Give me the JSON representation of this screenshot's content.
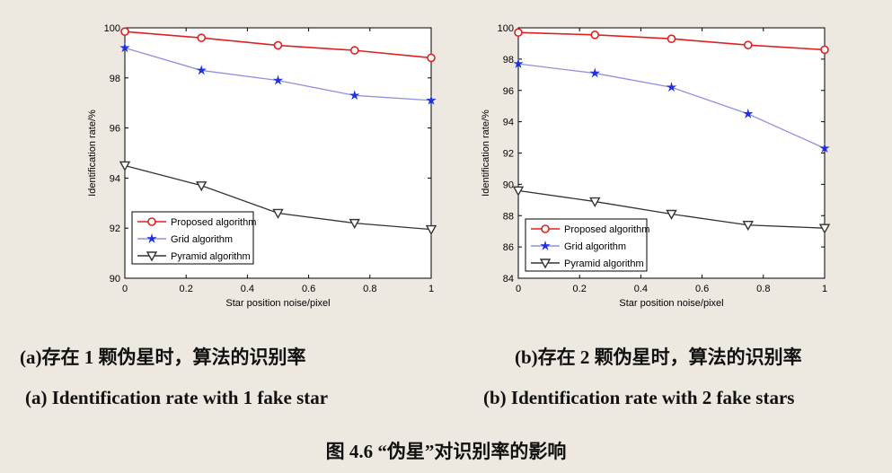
{
  "captions": {
    "a_zh": "(a)存在 1 颗伪星时，算法的识别率",
    "a_en": "(a) Identification rate with 1 fake star",
    "b_zh": "(b)存在 2 颗伪星时，算法的识别率",
    "b_en": "(b) Identification rate with 2 fake stars",
    "figure": "图 4.6 “伪星”对识别率的影响"
  },
  "colors": {
    "proposed": "#e02020",
    "grid": "#2030e0",
    "pyramid": "#333333",
    "grid_line": "#9090e0"
  },
  "chart_data": [
    {
      "type": "line",
      "xlabel": "Star position noise/pixel",
      "ylabel": "Identification rate/%",
      "xlim": [
        0,
        1
      ],
      "ylim": [
        90,
        100
      ],
      "xticks": [
        0,
        0.2,
        0.4,
        0.6,
        0.8,
        1
      ],
      "xtick_labels": [
        "0",
        "0.2",
        "0.4",
        "0.6",
        "0.8",
        "1"
      ],
      "yticks": [
        90,
        92,
        94,
        96,
        98,
        100
      ],
      "ytick_labels": [
        "90",
        "92",
        "94",
        "96",
        "98",
        "100"
      ],
      "grid": false,
      "legend_position": "bottom-left",
      "x": [
        0,
        0.25,
        0.5,
        0.75,
        1
      ],
      "series": [
        {
          "name": "Proposed algorithm",
          "marker": "circle",
          "color": "#e02020",
          "values": [
            99.85,
            99.6,
            99.3,
            99.1,
            98.8
          ]
        },
        {
          "name": "Grid algorithm",
          "marker": "star",
          "color": "#2030e0",
          "values": [
            99.2,
            98.3,
            97.9,
            97.3,
            97.1
          ]
        },
        {
          "name": "Pyramid algorithm",
          "marker": "triangle-down",
          "color": "#333333",
          "values": [
            94.5,
            93.7,
            92.6,
            92.2,
            91.95
          ]
        }
      ]
    },
    {
      "type": "line",
      "xlabel": "Star position noise/pixel",
      "ylabel": "Identification rate/%",
      "xlim": [
        0,
        1
      ],
      "ylim": [
        84,
        100
      ],
      "xticks": [
        0,
        0.2,
        0.4,
        0.6,
        0.8,
        1
      ],
      "xtick_labels": [
        "0",
        "0.2",
        "0.4",
        "0.6",
        "0.8",
        "1"
      ],
      "yticks": [
        84,
        86,
        88,
        90,
        92,
        94,
        96,
        98,
        100
      ],
      "ytick_labels": [
        "84",
        "86",
        "88",
        "90",
        "92",
        "94",
        "96",
        "98",
        "100"
      ],
      "grid": false,
      "legend_position": "bottom-left",
      "x": [
        0,
        0.25,
        0.5,
        0.75,
        1
      ],
      "series": [
        {
          "name": "Proposed algorithm",
          "marker": "circle",
          "color": "#e02020",
          "values": [
            99.7,
            99.55,
            99.3,
            98.9,
            98.6
          ]
        },
        {
          "name": "Grid algorithm",
          "marker": "star",
          "color": "#2030e0",
          "values": [
            97.7,
            97.1,
            96.2,
            94.5,
            92.3
          ]
        },
        {
          "name": "Pyramid algorithm",
          "marker": "triangle-down",
          "color": "#333333",
          "values": [
            89.6,
            88.9,
            88.1,
            87.4,
            87.2
          ]
        }
      ]
    }
  ]
}
